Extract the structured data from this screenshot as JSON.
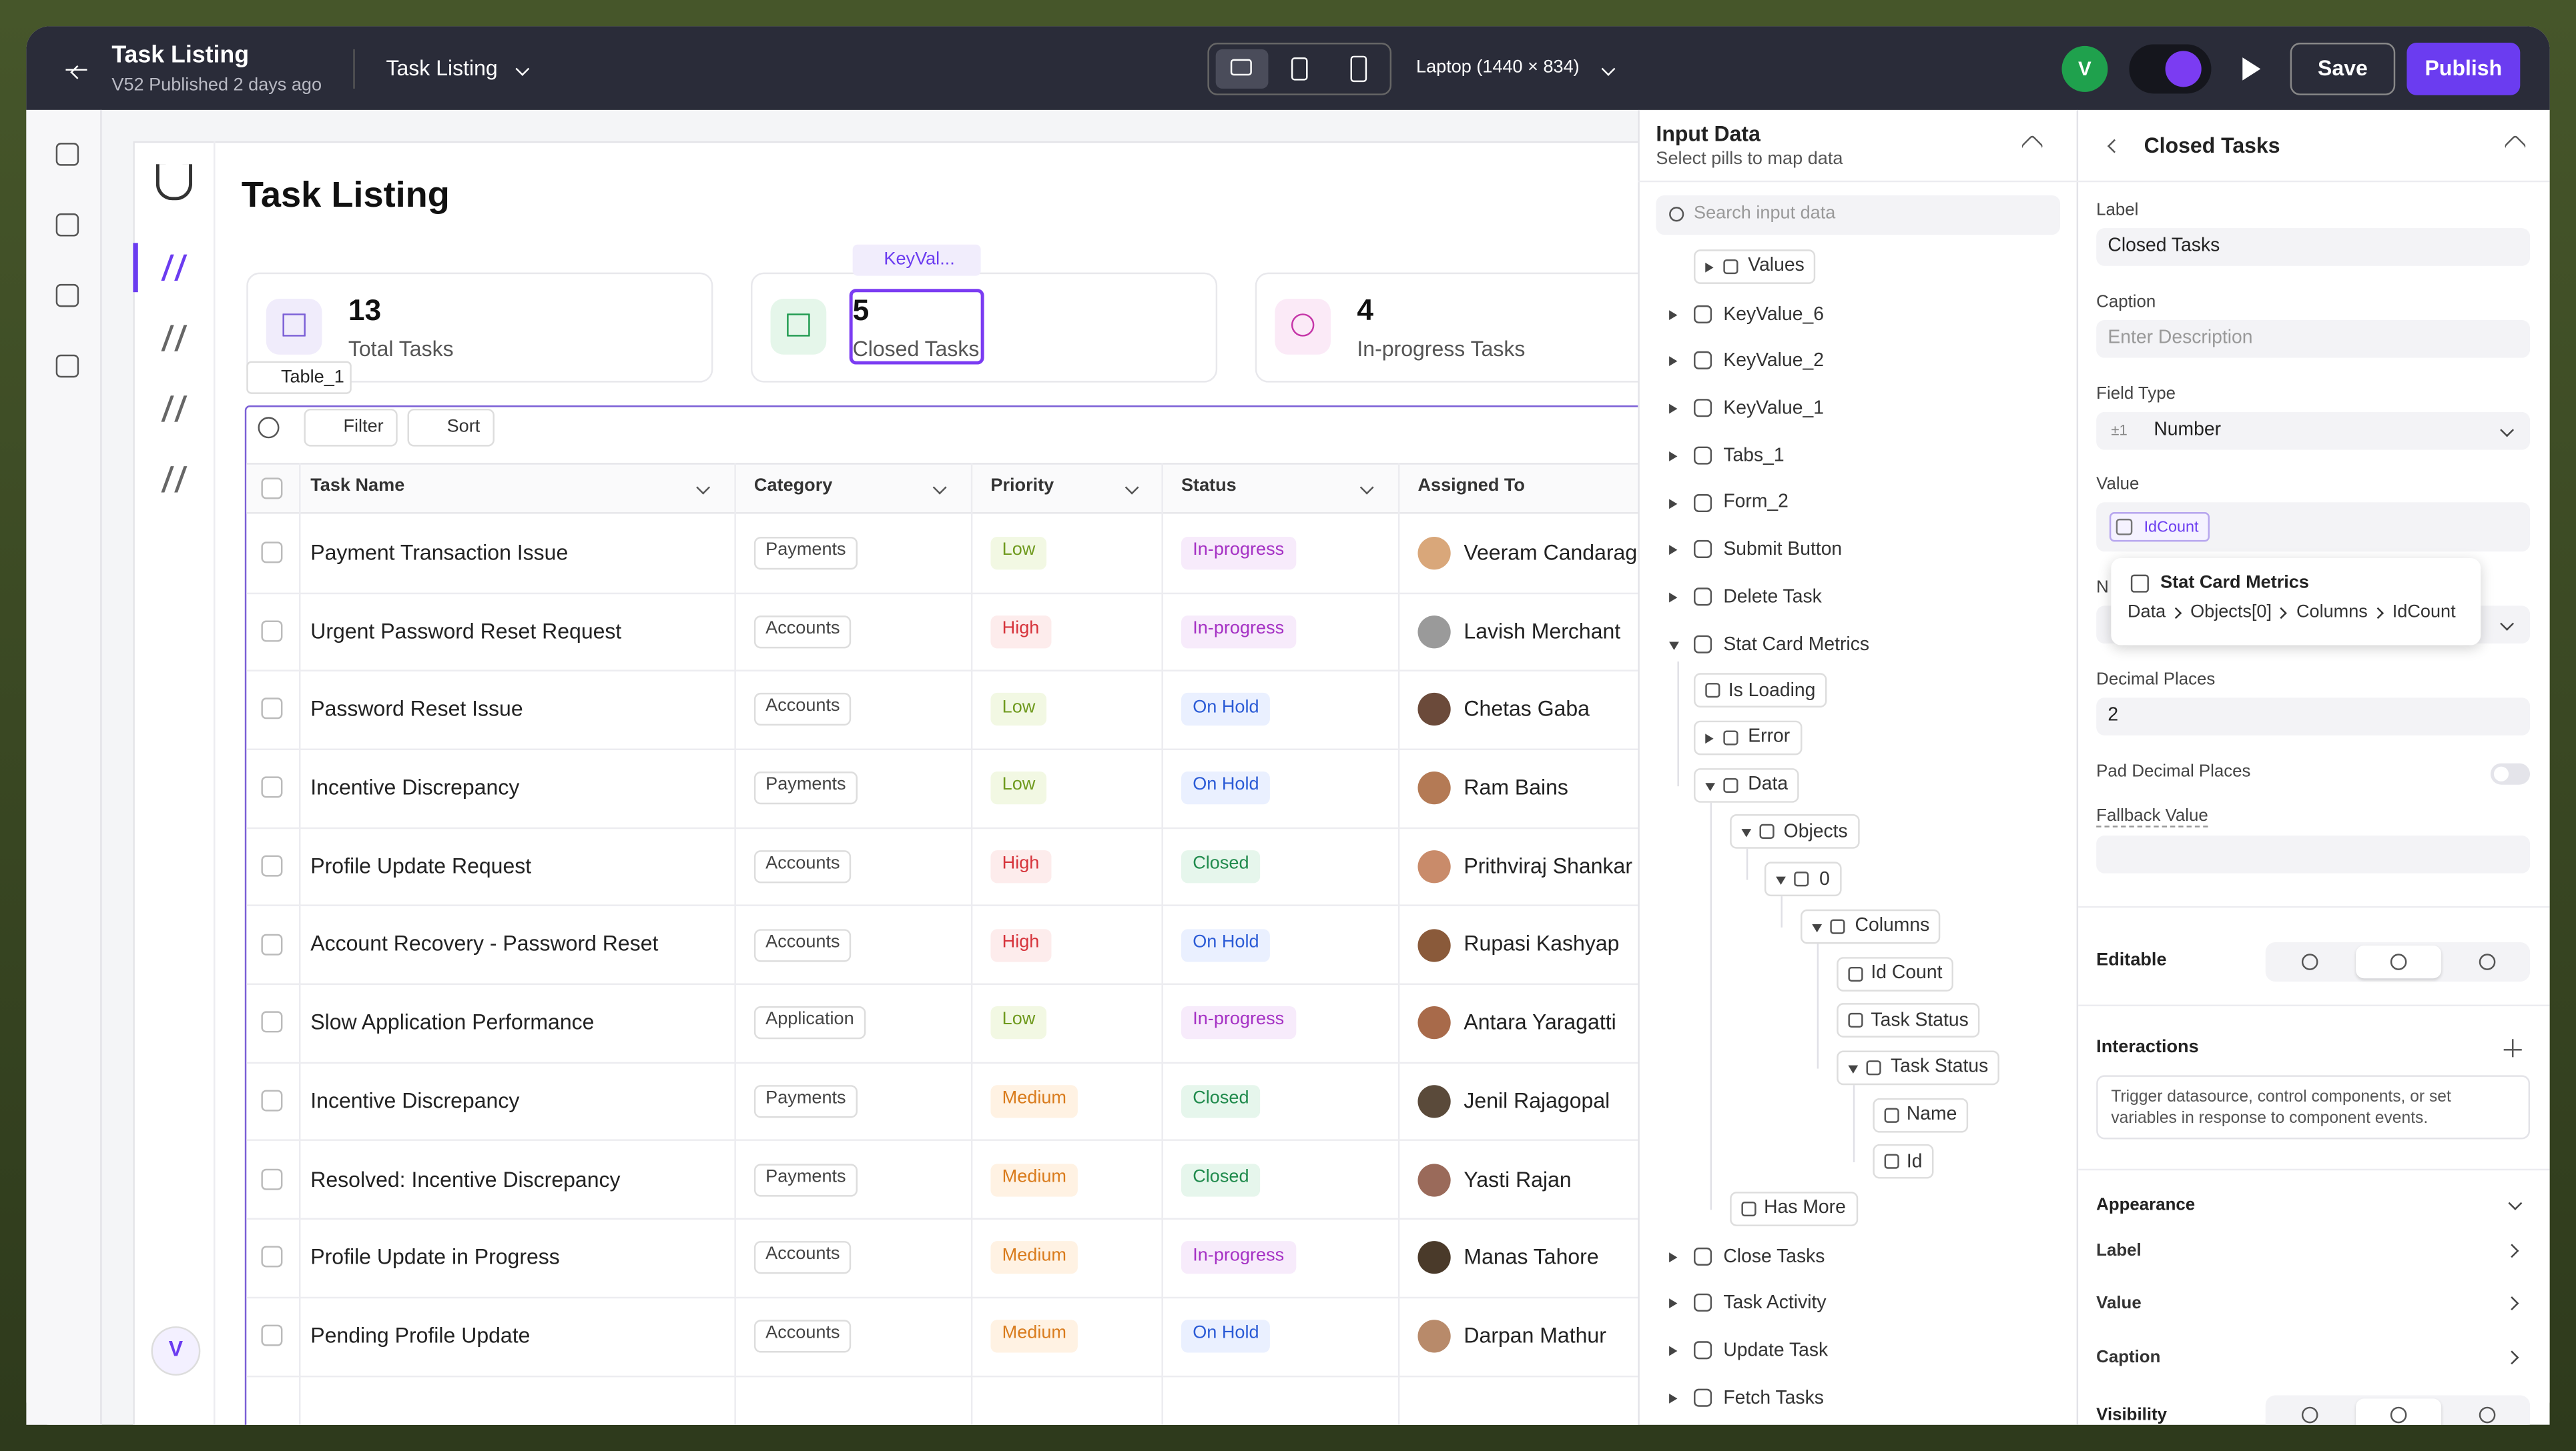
{
  "header": {
    "title": "Task Listing",
    "subtitle": "V52 Published 2 days ago",
    "page": "Task Listing",
    "device": "Laptop (1440 × 834)",
    "avatar": "V",
    "save": "Save",
    "publish": "Publish"
  },
  "canvas": {
    "page_title": "Task Listing",
    "user_avatar": "V",
    "stats": [
      {
        "value": 13,
        "label": "Total Tasks"
      },
      {
        "value": 5,
        "label": "Closed Tasks"
      },
      {
        "value": 4,
        "label": "In-progress Tasks"
      }
    ],
    "stat_pill": "KeyVal...",
    "table_tag": "Table_1",
    "toolbar": [
      "Filter",
      "Sort"
    ],
    "columns": [
      "Task Name",
      "Category",
      "Priority",
      "Status",
      "Assigned To"
    ],
    "rows": [
      [
        "Payment Transaction Issue",
        "Payments",
        "Low",
        "In-progress",
        "Veeram Candarag"
      ],
      [
        "Urgent Password Reset Request",
        "Accounts",
        "High",
        "In-progress",
        "Lavish Merchant"
      ],
      [
        "Password Reset Issue",
        "Accounts",
        "Low",
        "On Hold",
        "Chetas Gaba"
      ],
      [
        "Incentive Discrepancy",
        "Payments",
        "Low",
        "On Hold",
        "Ram Bains"
      ],
      [
        "Profile Update Request",
        "Accounts",
        "High",
        "Closed",
        "Prithviraj Shankar"
      ],
      [
        "Account Recovery - Password Reset",
        "Accounts",
        "High",
        "On Hold",
        "Rupasi Kashyap"
      ],
      [
        "Slow Application Performance",
        "Application",
        "Low",
        "In-progress",
        "Antara Yaragatti"
      ],
      [
        "Incentive Discrepancy",
        "Payments",
        "Medium",
        "Closed",
        "Jenil Rajagopal"
      ],
      [
        "Resolved: Incentive Discrepancy",
        "Payments",
        "Medium",
        "Closed",
        "Yasti Rajan"
      ],
      [
        "Profile Update in Progress",
        "Accounts",
        "Medium",
        "In-progress",
        "Manas Tahore"
      ],
      [
        "Pending Profile Update",
        "Accounts",
        "Medium",
        "On Hold",
        "Darpan Mathur"
      ]
    ],
    "badge_colors": {
      "Low": [
        "#6f9a1e",
        "#f2f8e3"
      ],
      "High": [
        "#d6333b",
        "#fdecec"
      ],
      "Medium": [
        "#d97b1c",
        "#fff2e3"
      ],
      "In-progress": [
        "#a531c4",
        "#f7ebfb"
      ],
      "On Hold": [
        "#2b5bd6",
        "#eaf0ff"
      ],
      "Closed": [
        "#1f8a4c",
        "#e6f6ec"
      ]
    }
  },
  "input_data": {
    "title": "Input Data",
    "subtitle": "Select pills to map data",
    "search_placeholder": "Search input data",
    "partial": {
      "label": "Values",
      "collapsed": true
    },
    "tree": [
      {
        "label": "KeyValue_6",
        "collapsed": true
      },
      {
        "label": "KeyValue_2",
        "collapsed": true
      },
      {
        "label": "KeyValue_1",
        "collapsed": true
      },
      {
        "label": "Tabs_1",
        "collapsed": true
      },
      {
        "label": "Form_2",
        "collapsed": true
      },
      {
        "label": "Submit Button",
        "collapsed": true
      },
      {
        "label": "Delete Task",
        "collapsed": true
      },
      {
        "label": "Stat Card Metrics",
        "children": [
          {
            "label": "Is Loading"
          },
          {
            "label": "Error",
            "collapsed": true
          },
          {
            "label": "Data",
            "children": [
              {
                "label": "Objects",
                "children": [
                  {
                    "label": "0",
                    "children": [
                      {
                        "label": "Columns",
                        "children": [
                          {
                            "label": "Id Count"
                          },
                          {
                            "label": "Task Status"
                          },
                          {
                            "label": "Task Status",
                            "children": [
                              {
                                "label": "Name"
                              },
                              {
                                "label": "Id"
                              }
                            ]
                          }
                        ]
                      }
                    ]
                  }
                ]
              },
              {
                "label": "Has More"
              }
            ]
          }
        ]
      },
      {
        "label": "Close Tasks",
        "collapsed": true
      },
      {
        "label": "Task Activity",
        "collapsed": true
      },
      {
        "label": "Update Task",
        "collapsed": true
      },
      {
        "label": "Fetch Tasks",
        "collapsed": true
      }
    ]
  },
  "properties": {
    "title": "Closed Tasks",
    "label_label": "Label",
    "label_value": "Closed Tasks",
    "caption_label": "Caption",
    "caption_placeholder": "Enter Description",
    "field_type_label": "Field Type",
    "field_type_icon": "±1",
    "field_type": "Number",
    "value_label": "Value",
    "value_pill": "IdCount",
    "hidden_label": "N",
    "tooltip": {
      "title": "Stat Card Metrics",
      "path": [
        "Data",
        "Objects[0]",
        "Columns",
        "IdCount"
      ]
    },
    "decimal_label": "Decimal Places",
    "decimal_value": "2",
    "pad_label": "Pad Decimal Places",
    "fallback_label": "Fallback Value",
    "editable_label": "Editable",
    "interactions_label": "Interactions",
    "interactions_hint": "Trigger datasource, control components, or set variables in response to component events.",
    "appearance_label": "Appearance",
    "appearance_items": [
      "Label",
      "Value",
      "Caption"
    ],
    "visibility_label": "Visibility"
  }
}
